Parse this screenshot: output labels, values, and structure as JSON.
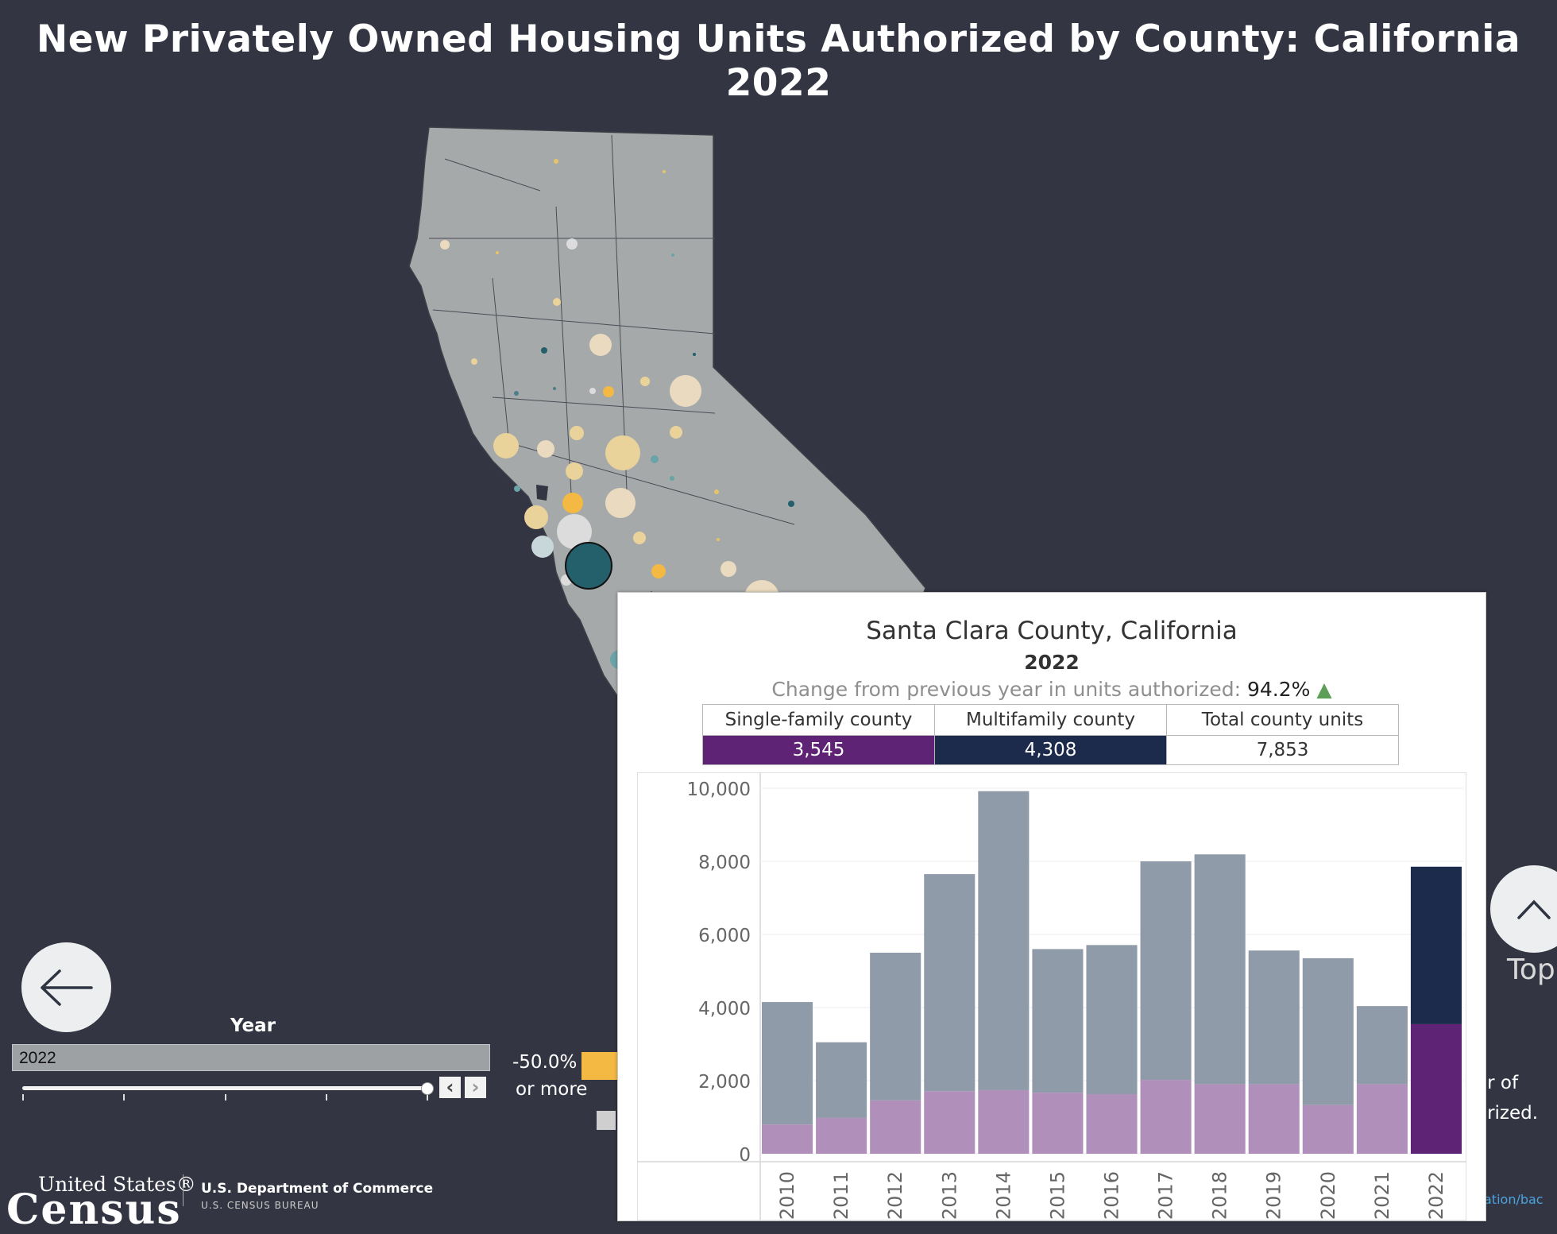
{
  "page": {
    "title": "New Privately Owned Housing Units Authorized by County: California 2022"
  },
  "nav": {
    "back_icon": "arrow-left-icon",
    "top_icon": "chevron-up-icon",
    "top_label": "Top"
  },
  "filter": {
    "year_label": "Year",
    "year_value": "2022",
    "prev_glyph": "‹",
    "next_glyph": "›"
  },
  "legend": {
    "label_line1": "-50.0%",
    "label_line2": "or more",
    "swatch_color": "#f3b942"
  },
  "background_note": {
    "line1": "er of",
    "line2": "orized.",
    "link": "ation/bac"
  },
  "footer": {
    "brand_line1": "United States®",
    "brand_line2": "Census",
    "dept": "U.S. Department of Commerce",
    "bureau": "U.S. CENSUS BUREAU"
  },
  "colors": {
    "background": "#333542",
    "map_fill": "#a6a9aa",
    "single_family": "#5e2375",
    "single_family_light": "#b08fba",
    "multifamily": "#1c2b4c",
    "prior_total": "#8f9ba8",
    "up_arrow": "#5c9e55"
  },
  "tooltip": {
    "county": "Santa Clara County, California",
    "year": "2022",
    "change_label": "Change from previous year in units authorized:",
    "change_value": "94.2%",
    "change_direction": "up",
    "table": {
      "headers": [
        "Single-family county",
        "Multifamily county",
        "Total county units"
      ],
      "values": [
        "3,545",
        "4,308",
        "7,853"
      ]
    }
  },
  "chart_data": {
    "type": "bar",
    "stacked": true,
    "categories": [
      "2010",
      "2011",
      "2012",
      "2013",
      "2014",
      "2015",
      "2016",
      "2017",
      "2018",
      "2019",
      "2020",
      "2021",
      "2022"
    ],
    "series": [
      {
        "values": [
          800,
          980,
          1460,
          1710,
          1740,
          1670,
          1630,
          2020,
          1900,
          1900,
          1330,
          1900,
          3545
        ]
      },
      {
        "values": [
          3350,
          2070,
          4040,
          5940,
          8180,
          3930,
          4080,
          5980,
          6290,
          3660,
          4020,
          2140,
          4308
        ]
      }
    ],
    "totals": [
      4150,
      3050,
      5500,
      7650,
      9920,
      5600,
      5710,
      8000,
      8190,
      5560,
      5350,
      4040,
      7853
    ],
    "highlight_category": "2022",
    "ylim": [
      0,
      10000
    ],
    "yticks": [
      0,
      2000,
      4000,
      6000,
      8000,
      10000
    ],
    "ytick_labels": [
      "0",
      "2,000",
      "4,000",
      "6,000",
      "8,000",
      "10,000"
    ],
    "xlabel": "",
    "ylabel": "",
    "grid": true
  }
}
